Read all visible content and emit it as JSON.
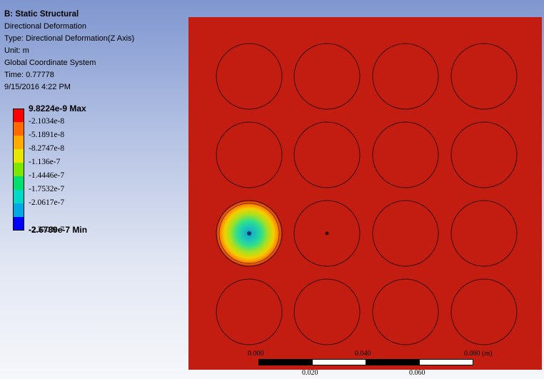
{
  "info": {
    "title": "B: Static Structural",
    "name": "Directional Deformation",
    "type": "Type: Directional Deformation(Z Axis)",
    "unit": "Unit: m",
    "coord_system": "Global Coordinate System",
    "time": "Time: 0.77778",
    "date": "9/15/2016 4:22 PM"
  },
  "legend": {
    "max_label": "9.8224e-9 Max",
    "labels": [
      "-2.1034e-8",
      "-5.1891e-8",
      "-8.2747e-8",
      "-1.136e-7",
      "-1.4446e-7",
      "-1.7532e-7",
      "-2.0617e-7",
      "-2.3703e-7"
    ],
    "min_label": "-2.6789e-7 Min",
    "colors": [
      "#ff0000",
      "#ff6a00",
      "#ffaa00",
      "#e6e600",
      "#7fe600",
      "#00e070",
      "#00d8c8",
      "#00a8e8",
      "#0000ff"
    ]
  },
  "model": {
    "fill_color": "#c21d10",
    "rows": 4,
    "cols": 4,
    "deformed_hole": "row-3-col-1"
  },
  "scale": {
    "top_labels": [
      "0.000",
      "0.040",
      "0.080 (m)"
    ],
    "bottom_labels": [
      "0.020",
      "0.060"
    ]
  }
}
